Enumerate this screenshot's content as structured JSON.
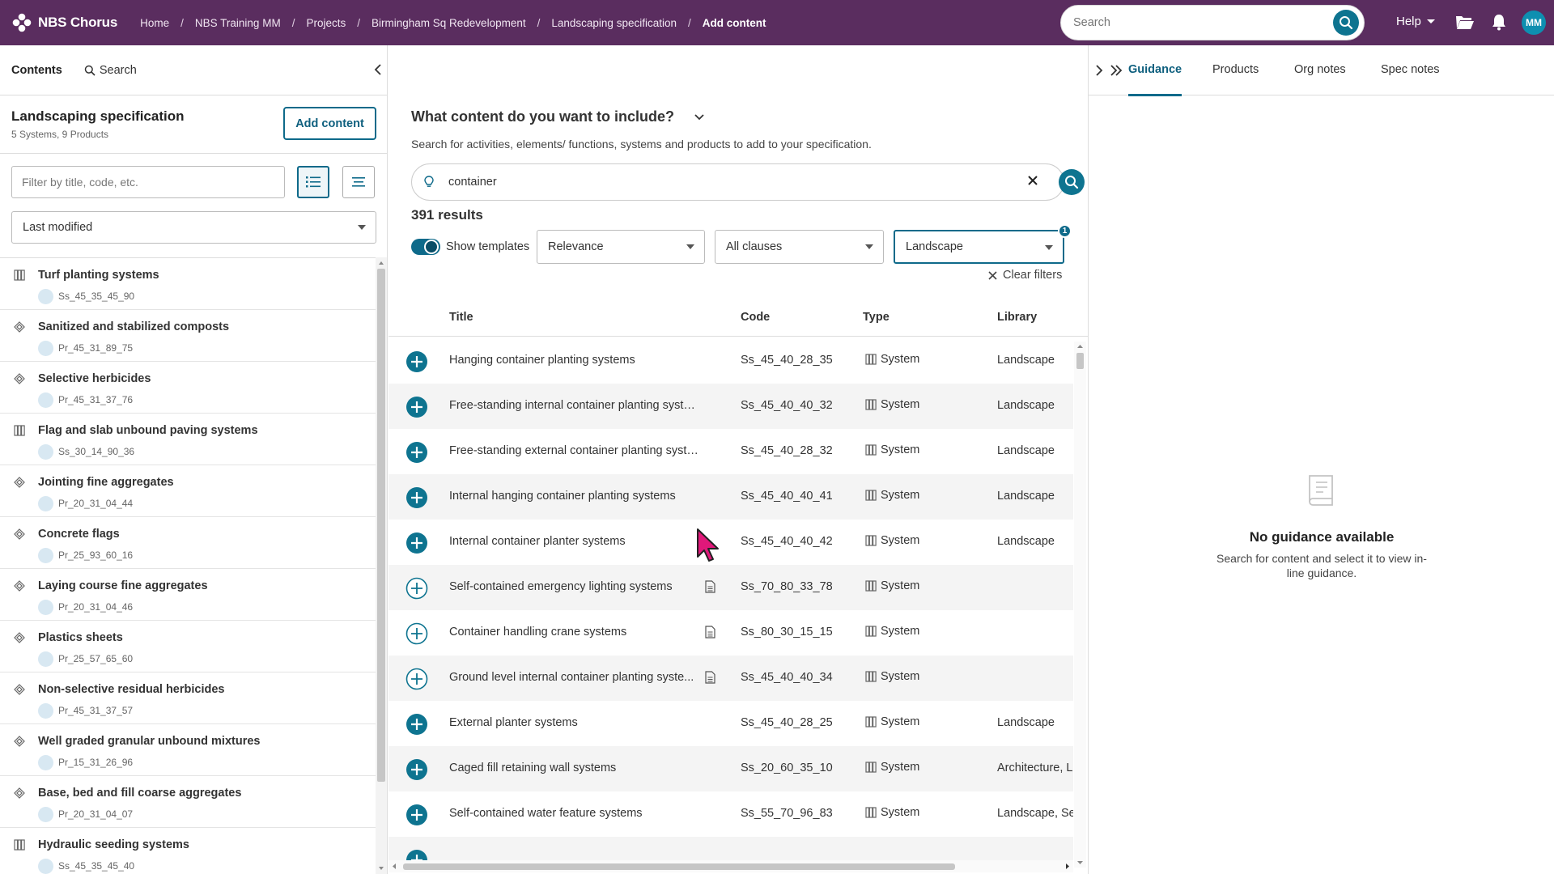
{
  "header": {
    "app_name": "NBS Chorus",
    "breadcrumbs": [
      "Home",
      "NBS Training MM",
      "Projects",
      "Birmingham Sq Redevelopment",
      "Landscaping specification",
      "Add content"
    ],
    "search_placeholder": "Search",
    "help_label": "Help",
    "avatar_initials": "MM",
    "brand_color": "#5a2d5f",
    "accent_color": "#0e7490"
  },
  "sidebar": {
    "tabs": [
      "Contents",
      "Search"
    ],
    "spec_title": "Landscaping specification",
    "spec_summary": "5 Systems, 9 Products",
    "add_content_label": "Add content",
    "filter_placeholder": "Filter by title, code, etc.",
    "sort_value": "Last modified",
    "items": [
      {
        "title": "Turf planting systems",
        "code": "Ss_45_35_45_90",
        "icon": "system-icon"
      },
      {
        "title": "Sanitized and stabilized composts",
        "code": "Pr_45_31_89_75",
        "icon": "product-icon"
      },
      {
        "title": "Selective herbicides",
        "code": "Pr_45_31_37_76",
        "icon": "product-icon"
      },
      {
        "title": "Flag and slab unbound paving systems",
        "code": "Ss_30_14_90_36",
        "icon": "system-icon"
      },
      {
        "title": "Jointing fine aggregates",
        "code": "Pr_20_31_04_44",
        "icon": "product-icon"
      },
      {
        "title": "Concrete flags",
        "code": "Pr_25_93_60_16",
        "icon": "product-icon"
      },
      {
        "title": "Laying course fine aggregates",
        "code": "Pr_20_31_04_46",
        "icon": "product-icon"
      },
      {
        "title": "Plastics sheets",
        "code": "Pr_25_57_65_60",
        "icon": "product-icon"
      },
      {
        "title": "Non-selective residual herbicides",
        "code": "Pr_45_31_37_57",
        "icon": "product-icon"
      },
      {
        "title": "Well graded granular unbound mixtures",
        "code": "Pr_15_31_26_96",
        "icon": "product-icon"
      },
      {
        "title": "Base, bed and fill coarse aggregates",
        "code": "Pr_20_31_04_07",
        "icon": "product-icon"
      },
      {
        "title": "Hydraulic seeding systems",
        "code": "Ss_45_35_45_40",
        "icon": "system-icon"
      }
    ]
  },
  "main": {
    "heading": "What content do you want to include?",
    "subheading": "Search for activities, elements/ functions, systems and products to add to your specification.",
    "search_value": "container",
    "results_count": "391 results",
    "show_templates_label": "Show templates",
    "show_templates_on": true,
    "sort_value": "Relevance",
    "clauses_value": "All clauses",
    "library_value": "Landscape",
    "filter_badge": "1",
    "clear_filters_label": "Clear filters",
    "columns": [
      "Title",
      "Code",
      "Type",
      "Library"
    ],
    "rows": [
      {
        "title": "Hanging container planting systems",
        "code": "Ss_45_40_28_35",
        "type": "System",
        "library": "Landscape",
        "filled": true,
        "doc": false
      },
      {
        "title": "Free-standing internal container planting systems",
        "code": "Ss_45_40_40_32",
        "type": "System",
        "library": "Landscape",
        "filled": true,
        "doc": false
      },
      {
        "title": "Free-standing external container planting systems",
        "code": "Ss_45_40_28_32",
        "type": "System",
        "library": "Landscape",
        "filled": true,
        "doc": false
      },
      {
        "title": "Internal hanging container planting systems",
        "code": "Ss_45_40_40_41",
        "type": "System",
        "library": "Landscape",
        "filled": true,
        "doc": false
      },
      {
        "title": "Internal container planter systems",
        "code": "Ss_45_40_40_42",
        "type": "System",
        "library": "Landscape",
        "filled": true,
        "doc": false
      },
      {
        "title": "Self-contained emergency lighting systems",
        "code": "Ss_70_80_33_78",
        "type": "System",
        "library": "",
        "filled": false,
        "doc": true
      },
      {
        "title": "Container handling crane systems",
        "code": "Ss_80_30_15_15",
        "type": "System",
        "library": "",
        "filled": false,
        "doc": true
      },
      {
        "title": "Ground level internal container planting syste...",
        "code": "Ss_45_40_40_34",
        "type": "System",
        "library": "",
        "filled": false,
        "doc": true
      },
      {
        "title": "External planter systems",
        "code": "Ss_45_40_28_25",
        "type": "System",
        "library": "Landscape",
        "filled": true,
        "doc": false
      },
      {
        "title": "Caged fill retaining wall systems",
        "code": "Ss_20_60_35_10",
        "type": "System",
        "library": "Architecture, L",
        "filled": true,
        "doc": false
      },
      {
        "title": "Self-contained water feature systems",
        "code": "Ss_55_70_96_83",
        "type": "System",
        "library": "Landscape, Se",
        "filled": true,
        "doc": false
      },
      {
        "title": "",
        "code": "",
        "type": "",
        "library": "",
        "filled": true,
        "doc": false
      }
    ]
  },
  "guidance": {
    "tabs": [
      "Guidance",
      "Products",
      "Org notes",
      "Spec notes"
    ],
    "empty_title": "No guidance available",
    "empty_text": "Search for content and select it to view in-line guidance."
  }
}
